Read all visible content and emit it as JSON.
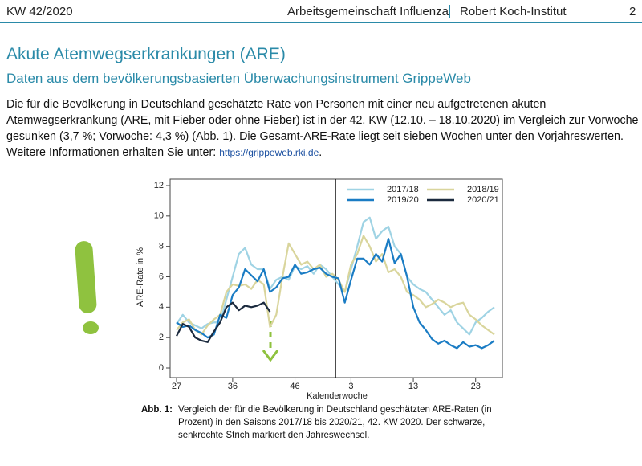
{
  "header": {
    "left": "KW 42/2020",
    "center": "Arbeitsgemeinschaft Influenza",
    "right": "Robert Koch-Institut",
    "page": "2"
  },
  "title": "Akute Atemwegserkrankungen (ARE)",
  "subtitle": "Daten aus dem bevölkerungsbasierten Überwachungsinstrument GrippeWeb",
  "paragraph": {
    "text": "Die für die Bevölkerung in Deutschland geschätzte Rate von Personen mit einer neu aufgetretenen akuten Atemwegserkrankung (ARE, mit Fieber oder ohne Fieber) ist in der 42. KW (12.10. – 18.10.2020) im Vergleich zur Vorwoche gesunken (3,7 %; Vorwoche: 4,3 %) (Abb. 1). Die Gesamt-ARE-Rate liegt seit sieben Wochen unter den Vorjahreswerten. Weitere Informationen erhalten Sie unter:",
    "link": "https://grippeweb.rki.de",
    "end": "."
  },
  "caption": {
    "label": "Abb. 1:",
    "text": "Vergleich der für die Bevölkerung in Deutschland geschätzten ARE-Raten (in Prozent) in den Saisons 2017/18 bis 2020/21, 42. KW 2020. Der schwarze, senkrechte Strich markiert den Jahreswechsel."
  },
  "chart_data": {
    "type": "line",
    "ylabel": "ARE-Rate in %",
    "xlabel": "Kalenderwoche",
    "categories": [
      "27",
      null,
      null,
      null,
      null,
      null,
      null,
      null,
      null,
      "36",
      null,
      null,
      null,
      null,
      null,
      null,
      null,
      null,
      null,
      "46",
      null,
      null,
      null,
      null,
      null,
      null,
      null,
      null,
      "3",
      null,
      null,
      null,
      null,
      null,
      null,
      null,
      null,
      null,
      "13",
      null,
      null,
      null,
      null,
      null,
      null,
      null,
      null,
      null,
      "23",
      null,
      null,
      null
    ],
    "ylim": [
      0,
      12
    ],
    "yticks": [
      0,
      2,
      4,
      6,
      8,
      10,
      12
    ],
    "series": [
      {
        "name": "2017/18",
        "color": "#9fd3e4",
        "values": [
          2.9,
          3.5,
          3.0,
          2.8,
          2.6,
          2.9,
          3.0,
          3.0,
          4.5,
          6.0,
          7.5,
          7.9,
          6.8,
          6.5,
          6.5,
          5.2,
          5.8,
          6.0,
          5.8,
          6.7,
          6.5,
          6.7,
          6.2,
          6.8,
          6.5,
          6.0,
          5.5,
          5.0,
          6.5,
          8.0,
          9.6,
          9.9,
          8.5,
          9.0,
          9.3,
          8.0,
          7.5,
          6.0,
          5.5,
          5.2,
          5.0,
          4.5,
          4.0,
          3.5,
          3.8,
          3.0,
          2.6,
          2.2,
          3.0,
          3.3,
          3.7,
          4.0
        ]
      },
      {
        "name": "2018/19",
        "color": "#d9d59c",
        "values": [
          2.5,
          3.0,
          3.2,
          2.5,
          2.2,
          2.8,
          3.2,
          3.5,
          5.0,
          5.5,
          5.4,
          5.5,
          5.2,
          5.8,
          5.5,
          2.7,
          3.5,
          6.0,
          8.2,
          7.5,
          6.8,
          7.0,
          6.5,
          6.8,
          6.0,
          6.2,
          5.8,
          5.0,
          6.8,
          7.5,
          8.7,
          8.0,
          7.0,
          7.5,
          6.3,
          6.5,
          6.0,
          5.0,
          4.8,
          4.5,
          4.0,
          4.2,
          4.5,
          4.3,
          4.0,
          4.2,
          4.3,
          3.5,
          3.2,
          2.8,
          2.5,
          2.2
        ]
      },
      {
        "name": "2019/20",
        "color": "#1a7cc4",
        "values": [
          3.0,
          2.7,
          2.8,
          2.5,
          2.3,
          2.0,
          2.2,
          3.5,
          3.3,
          4.8,
          5.3,
          6.5,
          6.1,
          5.7,
          6.5,
          5.0,
          5.3,
          5.9,
          6.0,
          6.8,
          6.2,
          6.3,
          6.5,
          6.6,
          6.2,
          6.0,
          5.9,
          4.3,
          5.8,
          7.2,
          7.2,
          6.8,
          7.5,
          7.0,
          8.5,
          6.9,
          7.5,
          6.0,
          4.0,
          3.0,
          2.5,
          1.9,
          1.6,
          1.8,
          1.5,
          1.3,
          1.7,
          1.4,
          1.5,
          1.3,
          1.5,
          1.8
        ]
      },
      {
        "name": "2020/21",
        "color": "#1b2a3e",
        "values": [
          2.1,
          2.9,
          2.7,
          2.0,
          1.8,
          1.7,
          2.4,
          3.0,
          4.0,
          4.3,
          3.8,
          4.1,
          4.0,
          4.1,
          4.3,
          3.7,
          null,
          null,
          null,
          null,
          null,
          null,
          null,
          null,
          null,
          null,
          null,
          null,
          null,
          null,
          null,
          null,
          null,
          null,
          null,
          null,
          null,
          null,
          null,
          null,
          null,
          null,
          null,
          null,
          null,
          null,
          null,
          null,
          null,
          null,
          null,
          null
        ]
      }
    ]
  }
}
